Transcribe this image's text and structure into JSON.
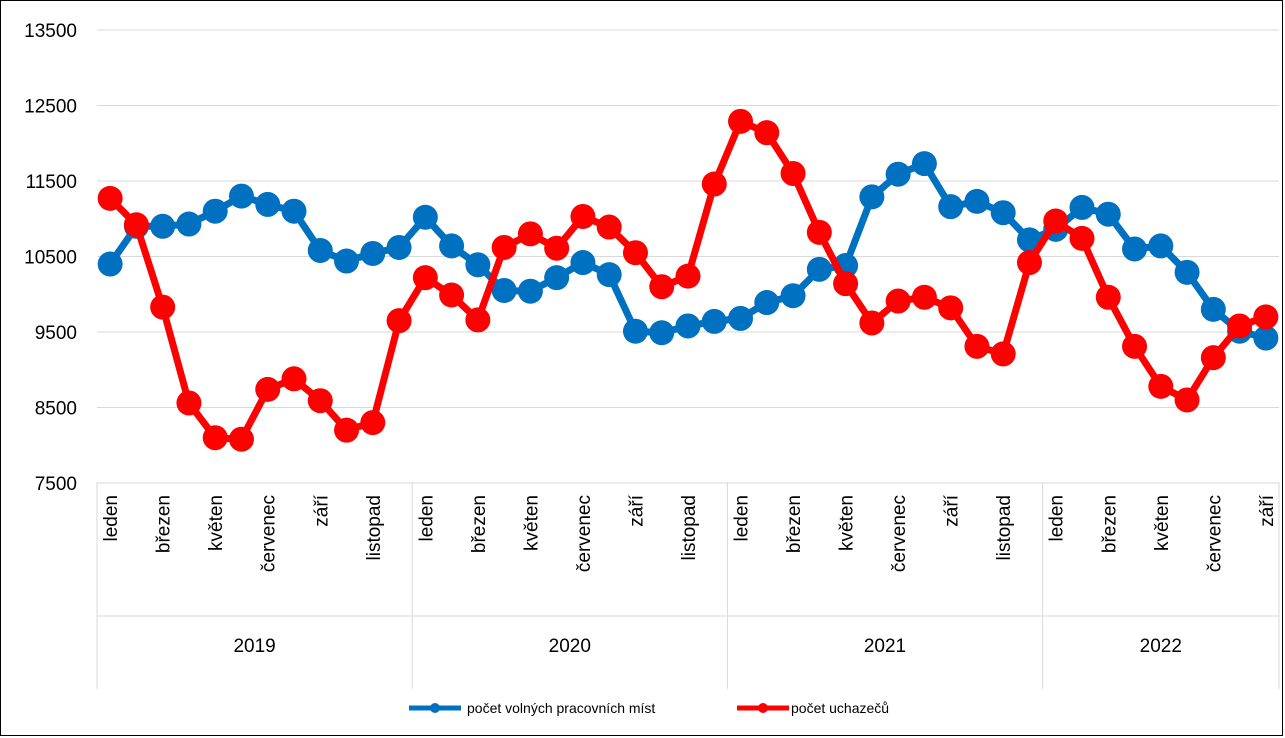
{
  "chart_data": {
    "type": "line",
    "title": "",
    "xlabel": "",
    "ylabel": "",
    "ylim": [
      7500,
      13500
    ],
    "yticks": [
      "13500",
      "12500",
      "11500",
      "10500",
      "9500",
      "8500",
      "7500"
    ],
    "grid": "horizontal",
    "legend_position": "bottom",
    "month_labels": [
      "leden",
      "březen",
      "květen",
      "červenec",
      "září",
      "listopad"
    ],
    "year_groups": [
      {
        "year": "2019",
        "months": 12
      },
      {
        "year": "2020",
        "months": 12
      },
      {
        "year": "2021",
        "months": 12
      },
      {
        "year": "2022",
        "months": 9
      }
    ],
    "series": [
      {
        "name": "počet volných pracovních míst",
        "color": "#0070c0",
        "values": [
          10400,
          10900,
          10900,
          10930,
          11100,
          11300,
          11190,
          11100,
          10580,
          10440,
          10540,
          10620,
          11020,
          10640,
          10390,
          10050,
          10040,
          10220,
          10420,
          10260,
          9510,
          9490,
          9580,
          9640,
          9680,
          9890,
          9980,
          10330,
          10380,
          11290,
          11590,
          11730,
          11160,
          11230,
          11080,
          10720,
          10860,
          11150,
          11060,
          10600,
          10640,
          10290,
          9800,
          9510,
          9420
        ]
      },
      {
        "name": "počet uchazečů",
        "color": "#ff0000",
        "values": [
          11270,
          10920,
          9830,
          8560,
          8100,
          8080,
          8740,
          8880,
          8590,
          8200,
          8300,
          9650,
          10220,
          9990,
          9660,
          10620,
          10800,
          10610,
          11030,
          10890,
          10550,
          10100,
          10240,
          11460,
          12290,
          12140,
          11600,
          10820,
          10140,
          9620,
          9910,
          9960,
          9820,
          9310,
          9210,
          10420,
          10970,
          10740,
          9960,
          9310,
          8780,
          8600,
          9160,
          9580,
          9700
        ]
      }
    ]
  }
}
